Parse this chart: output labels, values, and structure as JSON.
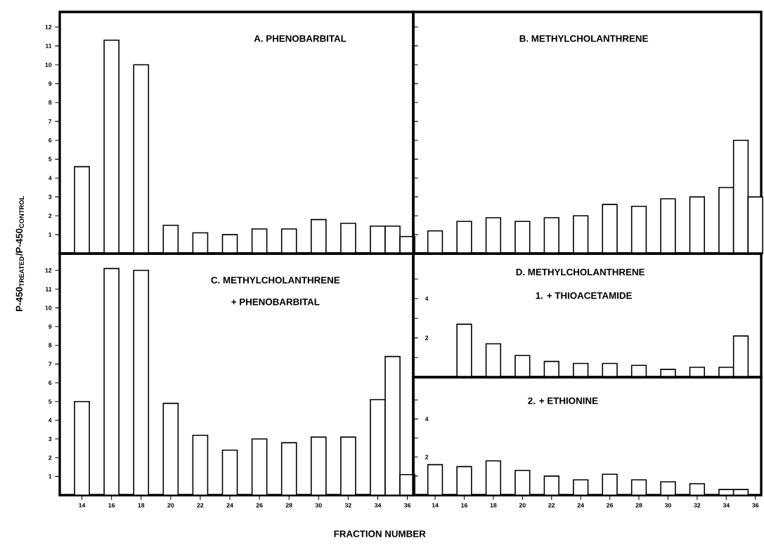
{
  "chart_data": [
    {
      "type": "bar",
      "title": "A. PHENOBARBITAL",
      "ylabel": "P-450$_{TREATED}$/P-450$_{CONTROL}$",
      "x": [
        14,
        16,
        18,
        20,
        22,
        24,
        26,
        28,
        30,
        32,
        34,
        35,
        36
      ],
      "values": [
        4.6,
        11.3,
        10.0,
        1.5,
        1.1,
        1.0,
        1.3,
        1.3,
        1.8,
        1.6,
        1.45,
        1.45,
        0.9
      ],
      "color": "#ffffff",
      "xlim": [
        12.5,
        36.4
      ],
      "ylim": [
        0,
        12.8
      ],
      "yticks": [
        1,
        2,
        3,
        4,
        5,
        6,
        7,
        8,
        9,
        10,
        11,
        12
      ],
      "tick_labels": "y"
    },
    {
      "type": "bar",
      "title": "B. METHYLCHOLANTHRENE",
      "x": [
        14,
        16,
        18,
        20,
        22,
        24,
        26,
        28,
        30,
        32,
        34,
        35,
        36
      ],
      "values": [
        1.2,
        1.7,
        1.9,
        1.7,
        1.9,
        2.0,
        2.6,
        2.5,
        2.9,
        3.0,
        3.5,
        6.0,
        3.0
      ],
      "color": "#ffffff",
      "xlim": [
        12.5,
        36.4
      ],
      "ylim": [
        0,
        12.8
      ],
      "yticks": [
        {
          "value": 1,
          "label": null
        },
        {
          "value": 2,
          "label": null
        },
        {
          "value": 3,
          "label": null
        },
        {
          "value": 4,
          "label": null
        },
        {
          "value": 5,
          "label": null
        },
        {
          "value": 6,
          "label": null
        },
        {
          "value": 7,
          "label": null
        },
        {
          "value": 8,
          "label": null
        },
        {
          "value": 9,
          "label": null
        },
        {
          "value": 10,
          "label": null
        },
        {
          "value": 11,
          "label": null
        },
        {
          "value": 12,
          "label": null
        }
      ],
      "tick_labels": false
    },
    {
      "type": "bar",
      "title": "C. METHYLCHOLANTHRENE",
      "subtitle": "+ PHENOBARBITAL",
      "xlabel": "FRACTION NUMBER",
      "x": [
        14,
        16,
        18,
        20,
        22,
        24,
        26,
        28,
        30,
        32,
        34,
        35,
        36
      ],
      "values": [
        5.0,
        12.1,
        12.0,
        4.9,
        3.2,
        2.4,
        3.0,
        2.8,
        3.1,
        3.1,
        5.1,
        7.4,
        1.1
      ],
      "color": "#ffffff",
      "xlim": [
        12.5,
        36.4
      ],
      "xticks": [
        14,
        16,
        18,
        20,
        22,
        24,
        26,
        28,
        30,
        32,
        34,
        36
      ],
      "ylim": [
        0,
        12.9
      ],
      "yticks": [
        1,
        2,
        3,
        4,
        5,
        6,
        7,
        8,
        9,
        10,
        11,
        12
      ]
    },
    {
      "type": "bar",
      "title": "D. METHYLCHOLANTHRENE",
      "subtitle": "1. + THIOACETAMIDE",
      "x": [
        16,
        18,
        20,
        22,
        24,
        26,
        28,
        30,
        32,
        34,
        35
      ],
      "values": [
        2.7,
        1.7,
        1.1,
        0.8,
        0.7,
        0.7,
        0.6,
        0.4,
        0.5,
        0.5,
        2.1
      ],
      "color": "#ffffff",
      "xlim": [
        12.5,
        36.4
      ],
      "ylim": [
        0,
        6.3
      ],
      "yticks": [
        {
          "value": 1,
          "label": null
        },
        2,
        {
          "value": 3,
          "label": null
        },
        4,
        {
          "value": 5,
          "label": null
        }
      ],
      "tick_labels": "y"
    },
    {
      "type": "bar",
      "title": "2. + ETHIONINE",
      "x": [
        14,
        16,
        18,
        20,
        22,
        24,
        26,
        28,
        30,
        32,
        34,
        35
      ],
      "values": [
        1.6,
        1.5,
        1.8,
        1.3,
        1.0,
        0.8,
        1.1,
        0.8,
        0.7,
        0.6,
        0.3,
        0.3
      ],
      "color": "#ffffff",
      "xlim": [
        12.5,
        36.4
      ],
      "xticks": [
        14,
        16,
        18,
        20,
        22,
        24,
        26,
        28,
        30,
        32,
        34,
        36
      ],
      "ylim": [
        0,
        6.2
      ],
      "yticks": [
        {
          "value": 1,
          "label": null
        },
        2,
        {
          "value": 3,
          "label": null
        },
        4,
        {
          "value": 5,
          "label": null
        }
      ]
    }
  ]
}
